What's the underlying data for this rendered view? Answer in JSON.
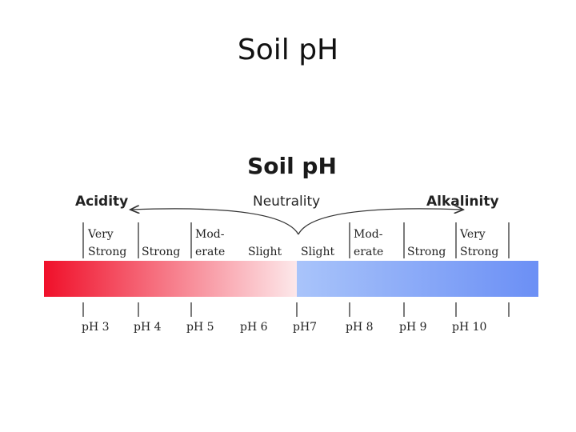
{
  "slide": {
    "title": "Soil pH"
  },
  "figure": {
    "title": "Soil pH",
    "headings": {
      "left": "Acidity",
      "center": "Neutrality",
      "right": "Alkalinity"
    },
    "categories": {
      "acid_very": [
        "Very",
        "Strong"
      ],
      "acid_strong": "Strong",
      "acid_moderate": [
        "Mod-",
        "erate"
      ],
      "acid_slight": "Slight",
      "alk_slight": "Slight",
      "alk_moderate": [
        "Mod-",
        "erate"
      ],
      "alk_strong": "Strong",
      "alk_very": [
        "Very",
        "Strong"
      ]
    },
    "ticks": [
      "pH 3",
      "pH 4",
      "pH 5",
      "pH 6",
      "pH7",
      "pH 8",
      "pH 9",
      "pH 10"
    ],
    "colors": {
      "acid_strong": "#f0102a",
      "acid_light": "#fde8ea",
      "alk_light": "#a9c4fa",
      "alk_strong": "#6b8ff5"
    }
  }
}
